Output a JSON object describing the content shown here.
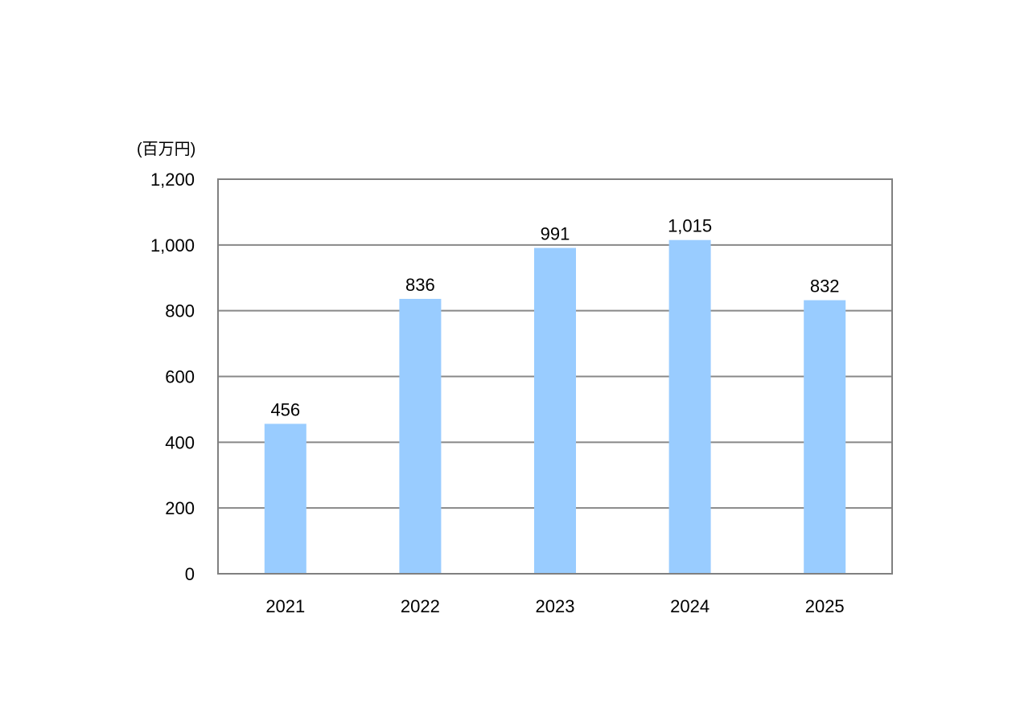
{
  "chart_data": {
    "type": "bar",
    "title": "",
    "unit_label": "(百万円)",
    "xlabel": "",
    "ylabel": "(百万円)",
    "categories": [
      "2021",
      "2022",
      "2023",
      "2024",
      "2025"
    ],
    "values": [
      456,
      836,
      991,
      1015,
      832
    ],
    "data_labels": [
      "456",
      "836",
      "991",
      "1,015",
      "832"
    ],
    "ylim": [
      0,
      1200
    ],
    "yticks": [
      0,
      200,
      400,
      600,
      800,
      1000,
      1200
    ],
    "ytick_labels": [
      "0",
      "200",
      "400",
      "600",
      "800",
      "1,000",
      "1,200"
    ],
    "grid": true,
    "legend": "none",
    "colors": {
      "bar": "#99ccff",
      "grid": "#888888",
      "frame": "#808080"
    }
  }
}
